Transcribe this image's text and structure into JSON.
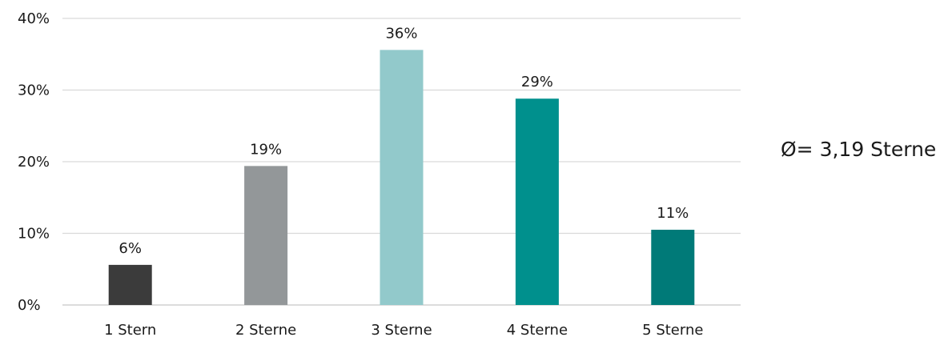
{
  "chart_data": {
    "type": "bar",
    "categories": [
      "1 Stern",
      "2 Sterne",
      "3 Sterne",
      "4 Sterne",
      "5 Sterne"
    ],
    "values": [
      5.6,
      19.4,
      35.6,
      28.8,
      10.5
    ],
    "data_labels": [
      "6%",
      "19%",
      "36%",
      "29%",
      "11%"
    ],
    "colors": [
      "#3b3b3b",
      "#939799",
      "#92c9cb",
      "#00908d",
      "#007a78"
    ],
    "yticks": [
      0,
      10,
      20,
      30,
      40
    ],
    "ytick_labels": [
      "0%",
      "10%",
      "20%",
      "30%",
      "40%"
    ],
    "ylim": [
      0,
      40
    ],
    "grid": true,
    "legend": "none",
    "title": "",
    "xlabel": "",
    "ylabel": "",
    "annotation": "Ø= 3,19 Sterne"
  }
}
